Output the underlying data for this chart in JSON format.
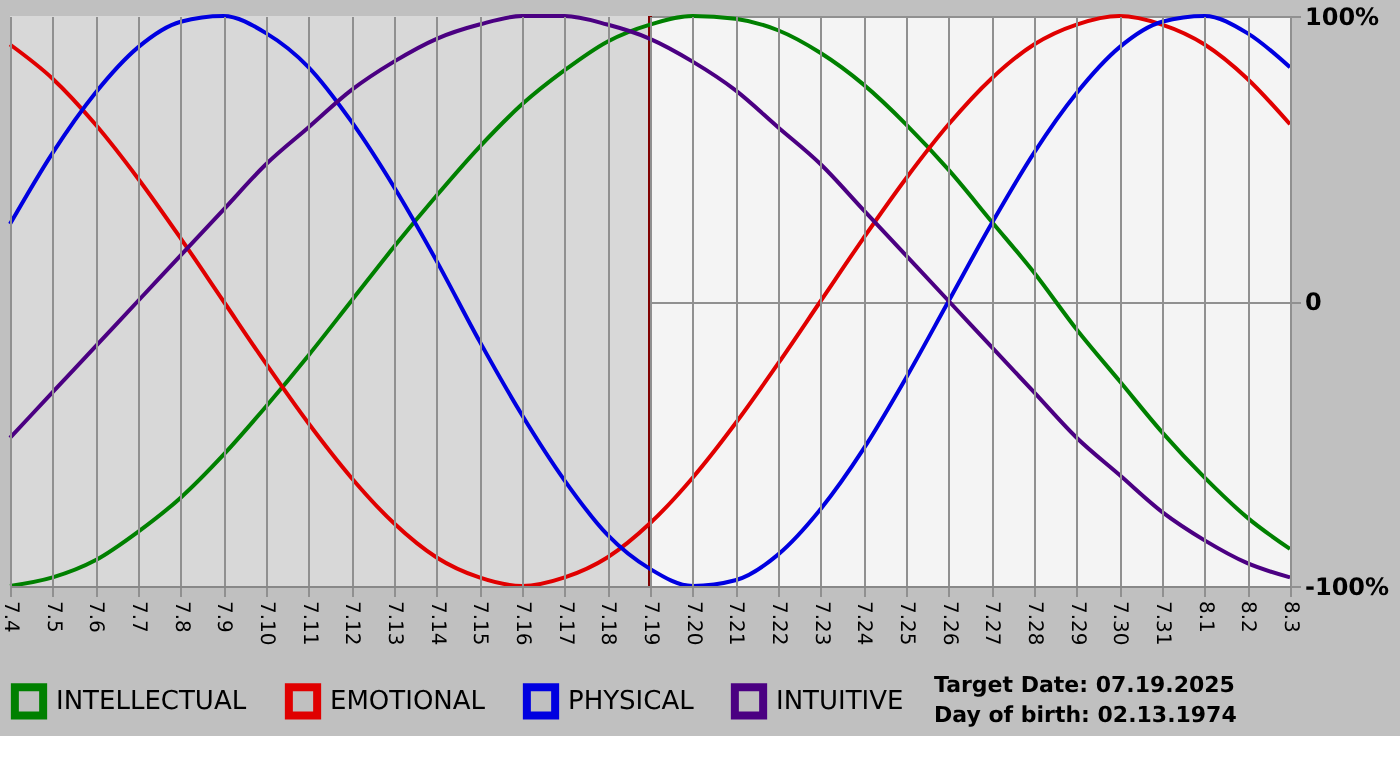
{
  "chart_data": {
    "type": "line",
    "categories": [
      "7.4",
      "7.5",
      "7.6",
      "7.7",
      "7.8",
      "7.9",
      "7.10",
      "7.11",
      "7.12",
      "7.13",
      "7.14",
      "7.15",
      "7.16",
      "7.17",
      "7.18",
      "7.19",
      "7.20",
      "7.21",
      "7.22",
      "7.23",
      "7.24",
      "7.25",
      "7.26",
      "7.27",
      "7.28",
      "7.29",
      "7.30",
      "7.31",
      "8.1",
      "8.2",
      "8.3"
    ],
    "series": [
      {
        "name": "INTELLECTUAL",
        "color": "#008000",
        "values": [
          -100,
          -97,
          -91,
          -81,
          -69,
          -54,
          -37,
          -19,
          0,
          19,
          37,
          54,
          69,
          81,
          91,
          97,
          100,
          99,
          95,
          87,
          76,
          62,
          46,
          28,
          10,
          -10,
          -28,
          -46,
          -62,
          -76,
          -87
        ]
      },
      {
        "name": "EMOTIONAL",
        "color": "#e00000",
        "values": [
          90,
          78,
          62,
          43,
          22,
          0,
          -22,
          -43,
          -62,
          -78,
          -90,
          -97,
          -100,
          -97,
          -90,
          -78,
          -62,
          -43,
          -22,
          0,
          22,
          43,
          62,
          78,
          90,
          97,
          100,
          97,
          90,
          78,
          62
        ]
      },
      {
        "name": "PHYSICAL",
        "color": "#0000e0",
        "values": [
          27,
          52,
          73,
          89,
          98,
          100,
          94,
          82,
          63,
          40,
          14,
          -14,
          -40,
          -63,
          -82,
          -94,
          -100,
          -98,
          -89,
          -73,
          -52,
          -27,
          0,
          27,
          52,
          73,
          89,
          98,
          100,
          94,
          82
        ]
      },
      {
        "name": "INTUITIVE",
        "color": "#4b0082",
        "values": [
          -48,
          -32,
          -16,
          0,
          16,
          32,
          48,
          61,
          74,
          84,
          92,
          97,
          100,
          100,
          97,
          92,
          84,
          74,
          61,
          48,
          32,
          16,
          0,
          -16,
          -32,
          -48,
          -61,
          -74,
          -84,
          -92,
          -97
        ]
      }
    ],
    "ylim": [
      -100,
      100
    ],
    "yticks": [
      {
        "value": -100,
        "label": "-100%"
      },
      0,
      {
        "value": 100,
        "label": "100%"
      }
    ],
    "grid": true,
    "legend": "bottom",
    "ref_lines": [
      {
        "axis": "x",
        "value": "7.19",
        "color": "#800000"
      }
    ],
    "bands": [
      {
        "axis": "x",
        "from": "7.4",
        "to": "7.19",
        "color": "#d8d8d8"
      }
    ],
    "annotations": [
      "Target Date: 07.19.2025",
      "Day of birth: 02.13.1974"
    ]
  }
}
